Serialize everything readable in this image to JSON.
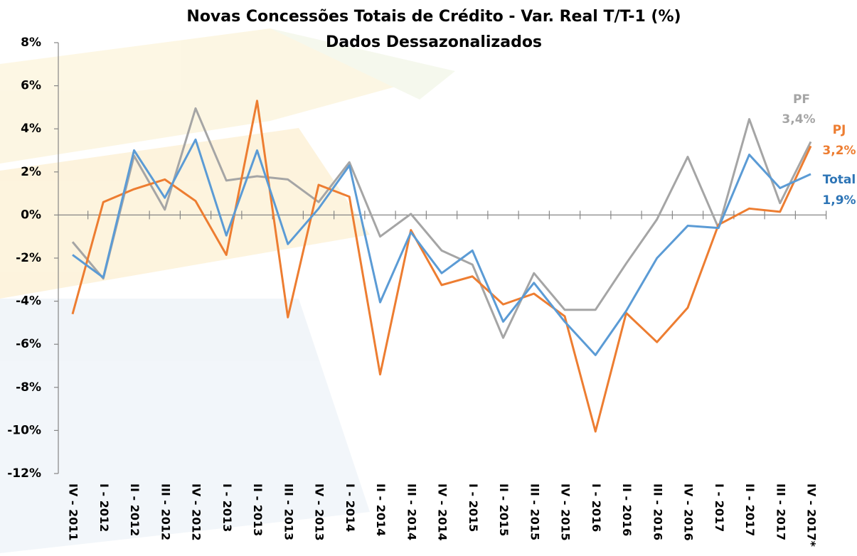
{
  "chart_data": {
    "type": "line",
    "title": "Novas Concessões Totais de Crédito - Var. Real T/T-1 (%)",
    "subtitle": "Dados Dessazonalizados",
    "categories": [
      "IV - 2011",
      "I - 2012",
      "II - 2012",
      "III - 2012",
      "IV - 2012",
      "I - 2013",
      "II - 2013",
      "III - 2013",
      "IV - 2013",
      "I - 2014",
      "II - 2014",
      "III - 2014",
      "IV - 2014",
      "I - 2015",
      "II - 2015",
      "III - 2015",
      "IV - 2015",
      "I - 2016",
      "II - 2016",
      "III - 2016",
      "IV - 2016",
      "I - 2017",
      "II - 2017",
      "III - 2017",
      "IV - 2017*"
    ],
    "ylim": [
      -12,
      8
    ],
    "yticks": [
      {
        "value": -12,
        "label": "-12%"
      },
      {
        "value": -10,
        "label": "-10%"
      },
      {
        "value": -8,
        "label": "-8%"
      },
      {
        "value": -6,
        "label": "-6%"
      },
      {
        "value": -4,
        "label": "-4%"
      },
      {
        "value": -2,
        "label": "-2%"
      },
      {
        "value": 0,
        "label": "0%"
      },
      {
        "value": 2,
        "label": "2%"
      },
      {
        "value": 4,
        "label": "4%"
      },
      {
        "value": 6,
        "label": "6%"
      },
      {
        "value": 8,
        "label": "8%"
      }
    ],
    "grid": false,
    "series": [
      {
        "name": "PF",
        "color": "#a5a5a5",
        "values": [
          -1.25,
          -2.95,
          2.75,
          0.25,
          4.95,
          1.6,
          1.8,
          1.65,
          0.6,
          2.45,
          -1.0,
          0.05,
          -1.65,
          -2.3,
          -5.7,
          -2.7,
          -4.4,
          -4.4,
          -2.25,
          -0.2,
          2.7,
          -0.6,
          4.45,
          0.55,
          3.4
        ],
        "value_labels": [
          null,
          null,
          null,
          null,
          null,
          null,
          null,
          null,
          null,
          null,
          null,
          null,
          null,
          null,
          null,
          null,
          null,
          null,
          null,
          null,
          null,
          null,
          null,
          null,
          "3,4%"
        ]
      },
      {
        "name": "PJ",
        "color": "#ed7d31",
        "values": [
          -4.6,
          0.6,
          1.2,
          1.65,
          0.65,
          -1.85,
          5.3,
          -4.75,
          1.4,
          0.85,
          -7.4,
          -0.7,
          -3.25,
          -2.85,
          -4.15,
          -3.65,
          -4.7,
          -10.05,
          -4.55,
          -5.9,
          -4.3,
          -0.45,
          0.3,
          0.15,
          3.2
        ],
        "value_labels": [
          null,
          null,
          null,
          null,
          null,
          null,
          null,
          null,
          null,
          null,
          null,
          null,
          null,
          null,
          null,
          null,
          null,
          null,
          null,
          null,
          null,
          null,
          null,
          null,
          "3,2%"
        ]
      },
      {
        "name": "Total",
        "color": "#5b9bd5",
        "values": [
          -1.85,
          -2.9,
          3.0,
          0.8,
          3.5,
          -0.95,
          3.0,
          -1.35,
          0.3,
          2.3,
          -4.05,
          -0.8,
          -2.7,
          -1.65,
          -4.95,
          -3.15,
          -4.95,
          -6.5,
          -4.45,
          -2.0,
          -0.5,
          -0.6,
          2.8,
          1.25,
          1.9
        ],
        "value_labels": [
          null,
          null,
          null,
          null,
          null,
          null,
          null,
          null,
          null,
          null,
          null,
          null,
          null,
          null,
          null,
          null,
          null,
          null,
          null,
          null,
          null,
          null,
          null,
          null,
          "1,9%"
        ]
      }
    ]
  }
}
